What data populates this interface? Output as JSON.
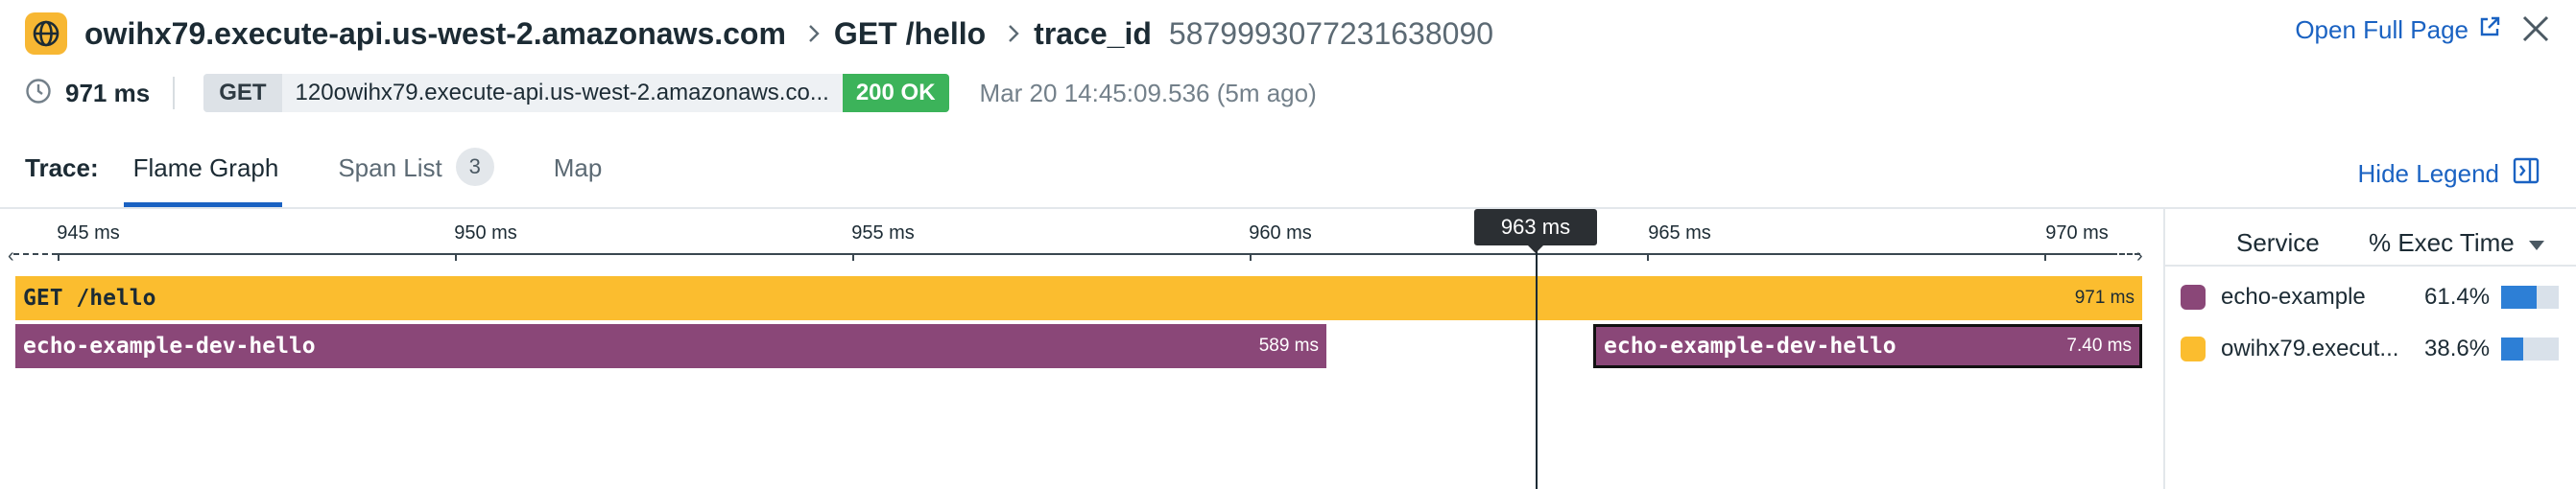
{
  "header": {
    "service_icon": "globe-icon",
    "title": "owihx79.execute-api.us-west-2.amazonaws.com",
    "operation": "GET /hello",
    "trace_id_label": "trace_id",
    "trace_id": "5879993077231638090",
    "open_full_page": "Open Full Page",
    "duration": "971 ms",
    "method": "GET",
    "url": "120owihx79.execute-api.us-west-2.amazonaws.co...",
    "status": "200 OK",
    "timestamp": "Mar 20 14:45:09.536 (5m ago)"
  },
  "tabs": {
    "label": "Trace:",
    "items": [
      {
        "label": "Flame Graph",
        "active": true
      },
      {
        "label": "Span List",
        "badge": "3"
      },
      {
        "label": "Map"
      }
    ],
    "hide_legend": "Hide Legend"
  },
  "axis": {
    "ticks": [
      "945 ms",
      "950 ms",
      "955 ms",
      "960 ms",
      "965 ms",
      "970 ms"
    ],
    "cursor": "963 ms"
  },
  "spans": [
    {
      "name": "GET /hello",
      "duration": "971 ms",
      "color": "#fbbd2f"
    },
    {
      "name": "echo-example-dev-hello",
      "duration": "589 ms",
      "color": "#8a4778"
    },
    {
      "name": "echo-example-dev-hello",
      "duration": "7.40 ms",
      "color": "#8a4778"
    }
  ],
  "legend": {
    "col_service": "Service",
    "col_exec": "% Exec Time",
    "rows": [
      {
        "service": "echo-example",
        "pct": "61.4%",
        "fraction": 0.614,
        "color": "#8a4778"
      },
      {
        "service": "owihx79.execut...",
        "pct": "38.6%",
        "fraction": 0.386,
        "color": "#fbbd2f"
      }
    ]
  },
  "colors": {
    "accent": "#1a62c2",
    "status_ok": "#3cb35a"
  }
}
